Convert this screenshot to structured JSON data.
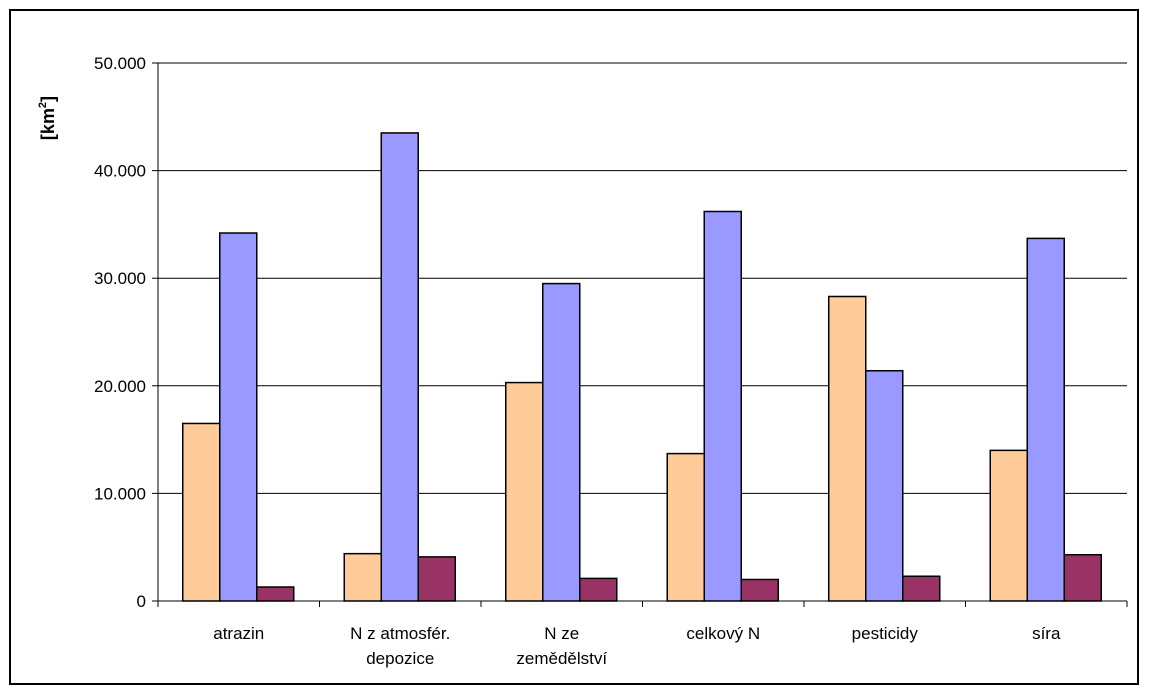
{
  "chart_data": {
    "type": "bar",
    "ylabel": "[km²]",
    "ylabel_base": "[km",
    "ylabel_sup": "2",
    "ylabel_end": "]",
    "categories": [
      [
        "atrazin"
      ],
      [
        "N z atmosfér.",
        "depozice"
      ],
      [
        "N ze",
        "zemědělství"
      ],
      [
        "celkový N"
      ],
      [
        "pesticidy"
      ],
      [
        "síra"
      ]
    ],
    "series": [
      {
        "color": "#FFCC99",
        "values": [
          16500,
          4400,
          20300,
          13700,
          28300,
          14000
        ]
      },
      {
        "color": "#9999FF",
        "values": [
          34200,
          43500,
          29500,
          36200,
          21400,
          33700
        ]
      },
      {
        "color": "#993366",
        "values": [
          1300,
          4100,
          2100,
          2000,
          2300,
          4300
        ]
      }
    ],
    "ylim": [
      0,
      50000
    ],
    "yticks": [
      0,
      10000,
      20000,
      30000,
      40000,
      50000
    ],
    "ytick_labels": [
      "0",
      "10.000",
      "20.000",
      "30.000",
      "40.000",
      "50.000"
    ],
    "grid": true,
    "legend": "none"
  }
}
